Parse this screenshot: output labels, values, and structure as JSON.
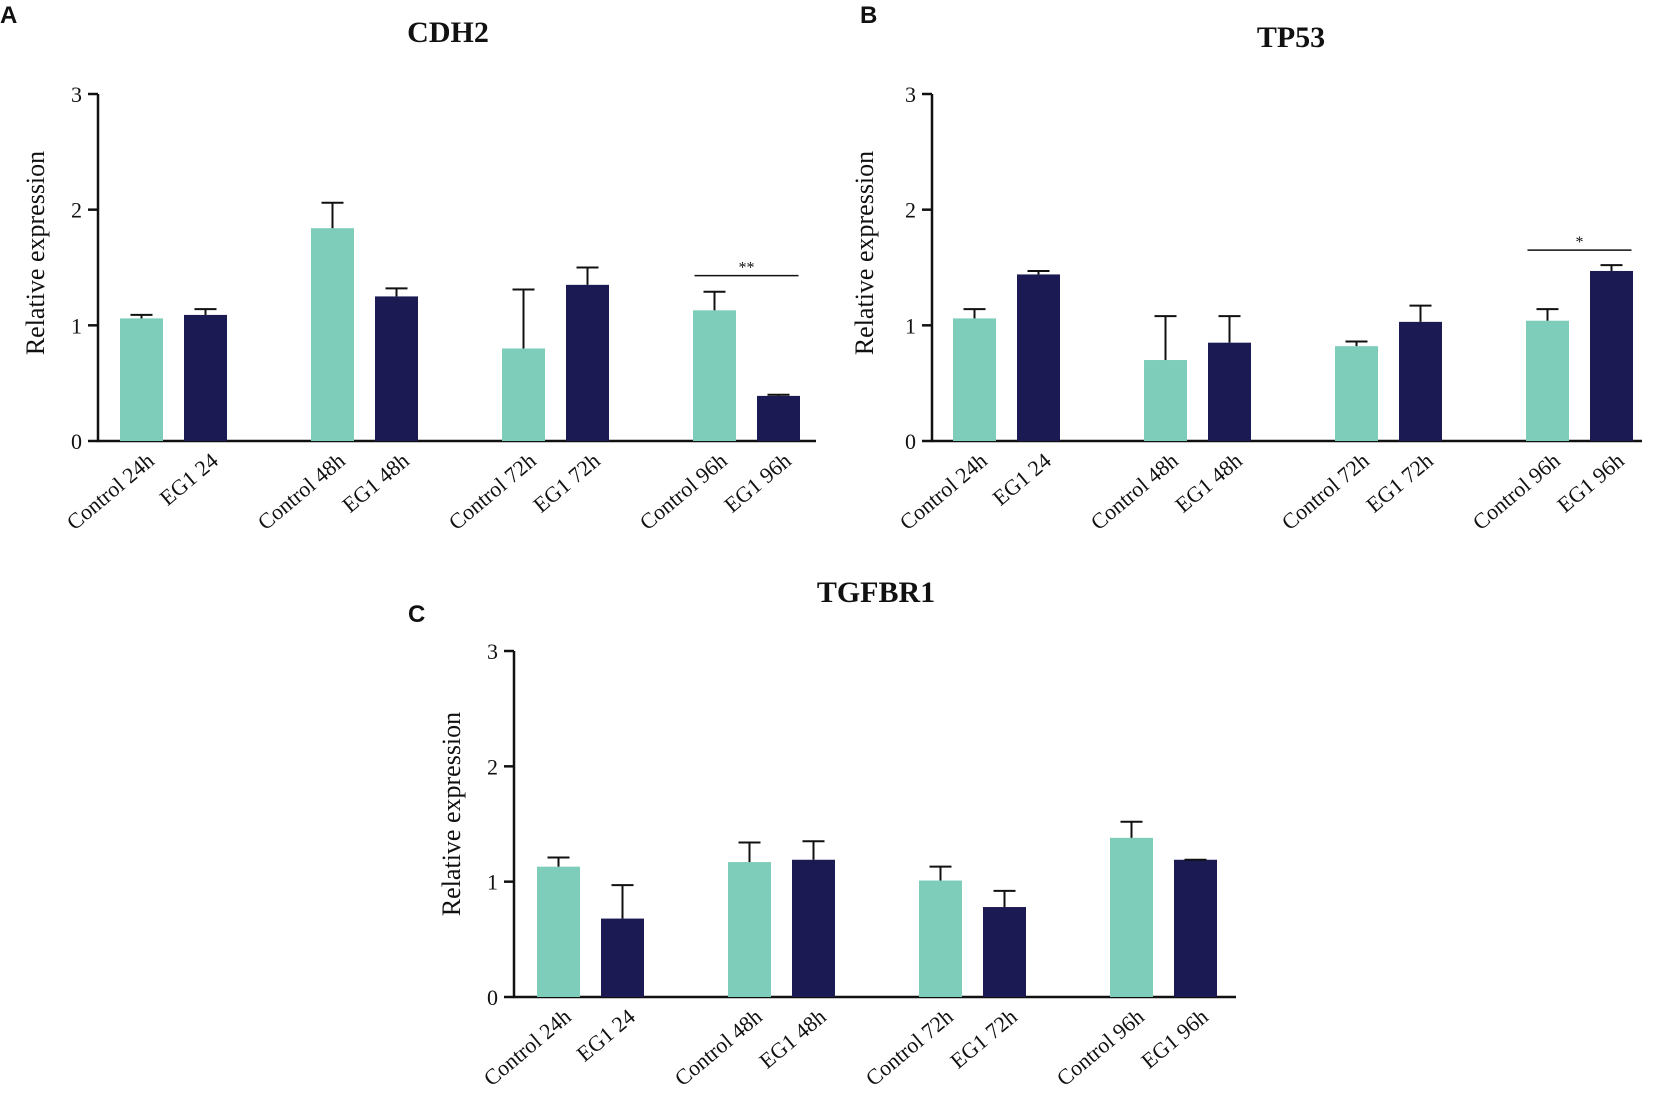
{
  "colors": {
    "control": "#7ecdbb",
    "treatment": "#1c1a52",
    "axis": "#111111"
  },
  "chart_data": [
    {
      "panel": "A",
      "type": "bar",
      "title": "CDH2",
      "ylabel": "Relative expression",
      "xlabel": "",
      "ylim": [
        0,
        3
      ],
      "yticks": [
        0,
        1,
        2,
        3
      ],
      "categories": [
        "Control 24h",
        "EG1 24",
        "Control 48h",
        "EG1 48h",
        "Control 72h",
        "EG1 72h",
        "Control 96h",
        "EG1 96h"
      ],
      "values": [
        1.06,
        1.09,
        1.84,
        1.25,
        0.8,
        1.35,
        1.13,
        0.39
      ],
      "errors": [
        0.03,
        0.05,
        0.22,
        0.07,
        0.51,
        0.15,
        0.16,
        0.01
      ],
      "groups": [
        "control",
        "treatment",
        "control",
        "treatment",
        "control",
        "treatment",
        "control",
        "treatment"
      ],
      "annotations": [
        {
          "text": "**",
          "from": 6,
          "to": 7,
          "y": 1.43
        }
      ]
    },
    {
      "panel": "B",
      "type": "bar",
      "title": "TP53",
      "ylabel": "Relative expression",
      "xlabel": "",
      "ylim": [
        0,
        3
      ],
      "yticks": [
        0,
        1,
        2,
        3
      ],
      "categories": [
        "Control 24h",
        "EG1 24",
        "Control 48h",
        "EG1 48h",
        "Control 72h",
        "EG1 72h",
        "Control 96h",
        "EG1 96h"
      ],
      "values": [
        1.06,
        1.44,
        0.7,
        0.85,
        0.82,
        1.03,
        1.04,
        1.47
      ],
      "errors": [
        0.08,
        0.03,
        0.38,
        0.23,
        0.04,
        0.14,
        0.1,
        0.05
      ],
      "groups": [
        "control",
        "treatment",
        "control",
        "treatment",
        "control",
        "treatment",
        "control",
        "treatment"
      ],
      "annotations": [
        {
          "text": "*",
          "from": 6,
          "to": 7,
          "y": 1.65
        }
      ]
    },
    {
      "panel": "C",
      "type": "bar",
      "title": "TGFBR1",
      "ylabel": "Relative expression",
      "xlabel": "",
      "ylim": [
        0,
        3
      ],
      "yticks": [
        0,
        1,
        2,
        3
      ],
      "categories": [
        "Control 24h",
        "EG1 24",
        "Control 48h",
        "EG1 48h",
        "Control 72h",
        "EG1 72h",
        "Control 96h",
        "EG1 96h"
      ],
      "values": [
        1.13,
        0.68,
        1.17,
        1.19,
        1.01,
        0.78,
        1.38,
        1.19
      ],
      "errors": [
        0.08,
        0.29,
        0.17,
        0.16,
        0.12,
        0.14,
        0.14,
        0.0
      ],
      "groups": [
        "control",
        "treatment",
        "control",
        "treatment",
        "control",
        "treatment",
        "control",
        "treatment"
      ],
      "annotations": []
    }
  ]
}
